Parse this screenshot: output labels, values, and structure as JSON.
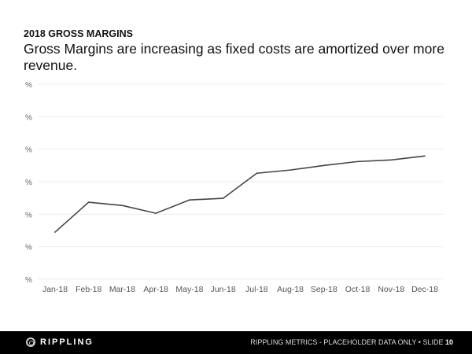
{
  "header": {
    "kicker": "2018 GROSS MARGINS",
    "headline": "Gross Margins are increasing as fixed costs are amortized over more revenue."
  },
  "chart_data": {
    "type": "line",
    "title": "",
    "xlabel": "",
    "ylabel": "",
    "categories": [
      "Jan-18",
      "Feb-18",
      "Mar-18",
      "Apr-18",
      "May-18",
      "Jun-18",
      "Jul-18",
      "Aug-18",
      "Sep-18",
      "Oct-18",
      "Nov-18",
      "Dec-18"
    ],
    "y_tick_labels": [
      "%",
      "%",
      "%",
      "%",
      "%",
      "%",
      "%"
    ],
    "ylim": [
      0,
      6
    ],
    "grid": true,
    "line_color": "#444444",
    "series": [
      {
        "values": [
          1.45,
          2.37,
          2.27,
          2.03,
          2.44,
          2.49,
          3.26,
          3.36,
          3.5,
          3.62,
          3.67,
          3.79
        ]
      }
    ]
  },
  "footer": {
    "logo_text": "RIPPLING",
    "caption": "RIPPLING METRICS - PLACEHOLDER DATA ONLY  •  SLIDE",
    "slide_number": "10"
  }
}
